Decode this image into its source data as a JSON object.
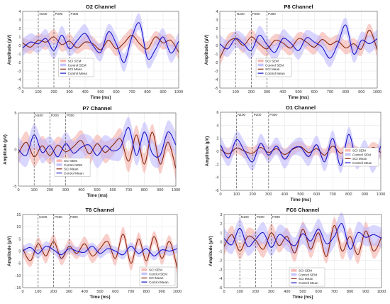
{
  "figure": {
    "colors": {
      "sci_sem_fill": "#f4a7a0",
      "control_sem_fill": "#b9b4ff",
      "sci_mean_line": "#8b2a12",
      "control_mean_line": "#1a14c8",
      "marker_line": "#555555",
      "grid_line": "#e3e3e3"
    },
    "components": [
      "N100",
      "P200",
      "P300"
    ],
    "component_times": [
      100,
      200,
      300
    ]
  },
  "chart_data": [
    {
      "type": "line",
      "title": "O2 Channel",
      "xlabel": "Time (ms)",
      "ylabel": "Amplitude (µV)",
      "xlim": [
        0,
        1000
      ],
      "ylim": [
        -5,
        4
      ],
      "xticks": [
        0,
        100,
        200,
        300,
        400,
        500,
        600,
        700,
        800,
        900,
        1000
      ],
      "yticks": [
        -5,
        -4,
        -3,
        -2,
        -1,
        0,
        1,
        2,
        3,
        4
      ],
      "grid": true,
      "legend": "center-left",
      "x": [
        0,
        50,
        100,
        150,
        200,
        250,
        300,
        350,
        400,
        450,
        500,
        550,
        600,
        650,
        700,
        750,
        800,
        850,
        900,
        950,
        1000
      ],
      "series": [
        {
          "name": "SCI Mean",
          "values": [
            0.3,
            -0.2,
            0.6,
            0.4,
            1.0,
            0.1,
            0.5,
            -0.3,
            0.4,
            0.2,
            -0.5,
            0.6,
            -0.4,
            0.3,
            1.2,
            0.2,
            -0.4,
            1.0,
            0.3,
            0.6,
            -0.8
          ],
          "sem": 0.9
        },
        {
          "name": "Control Mean",
          "values": [
            -0.3,
            0.4,
            0.2,
            0.8,
            -0.6,
            1.2,
            -0.4,
            0.6,
            1.4,
            0.0,
            -0.8,
            1.6,
            0.2,
            -2.0,
            1.0,
            2.6,
            -1.5,
            -0.5,
            1.0,
            -0.9,
            0.5
          ],
          "sem": 1.1
        }
      ],
      "legend_entries": [
        "SCI SEM",
        "Control SEM",
        "SCI Mean",
        "Control Mean"
      ]
    },
    {
      "type": "line",
      "title": "P8 Channel",
      "xlabel": "Time (ms)",
      "ylabel": "Amplitude (µV)",
      "xlim": [
        0,
        1000
      ],
      "ylim": [
        -5,
        4
      ],
      "xticks": [
        0,
        100,
        200,
        300,
        400,
        500,
        600,
        700,
        800,
        900,
        1000
      ],
      "yticks": [
        -5,
        -4,
        -3,
        -2,
        -1,
        0,
        1,
        2,
        3,
        4
      ],
      "grid": true,
      "legend": "center-left",
      "x": [
        0,
        50,
        100,
        150,
        200,
        250,
        300,
        350,
        400,
        450,
        500,
        550,
        600,
        650,
        700,
        750,
        800,
        850,
        900,
        950,
        1000
      ],
      "series": [
        {
          "name": "SCI Mean",
          "values": [
            -1.5,
            0.3,
            0.8,
            0.0,
            1.0,
            0.2,
            -0.4,
            0.6,
            0.3,
            -0.3,
            0.8,
            0.4,
            -0.2,
            0.7,
            0.1,
            0.5,
            -0.3,
            0.2,
            -0.4,
            1.8,
            -0.5
          ],
          "sem": 0.9
        },
        {
          "name": "Control Mean",
          "values": [
            0.2,
            -0.4,
            0.8,
            0.2,
            -0.6,
            1.2,
            0.1,
            -0.8,
            0.8,
            0.3,
            -0.6,
            0.9,
            0.4,
            -0.2,
            -1.5,
            0.2,
            2.4,
            -1.0,
            0.6,
            0.2,
            0.8
          ],
          "sem": 1.1
        }
      ],
      "legend_entries": [
        "SCI SEM",
        "Control SEM",
        "SCI Mean",
        "Control Mean"
      ]
    },
    {
      "type": "line",
      "title": "P7 Channel",
      "xlabel": "Time (ms)",
      "ylabel": "Amplitude (µV)",
      "xlim": [
        0,
        1000
      ],
      "ylim": [
        -5,
        5
      ],
      "xticks": [
        0,
        100,
        200,
        300,
        400,
        500,
        600,
        700,
        800,
        900,
        1000
      ],
      "yticks": [
        -5,
        0,
        5
      ],
      "grid": true,
      "legend": "center-left",
      "x": [
        0,
        50,
        100,
        150,
        200,
        250,
        300,
        350,
        400,
        450,
        500,
        550,
        600,
        650,
        700,
        750,
        800,
        850,
        900,
        950,
        1000
      ],
      "series": [
        {
          "name": "SCI Mean",
          "values": [
            -0.5,
            1.0,
            -1.0,
            0.5,
            -0.8,
            0.6,
            -0.3,
            0.4,
            1.2,
            -0.6,
            0.8,
            -0.4,
            0.6,
            1.4,
            -1.6,
            2.0,
            -2.0,
            2.4,
            -2.0,
            1.0,
            -2.6
          ],
          "sem": 1.5
        },
        {
          "name": "Control Mean",
          "values": [
            0.0,
            -0.8,
            2.0,
            -0.4,
            0.5,
            -1.0,
            0.8,
            -0.5,
            0.3,
            0.6,
            -0.8,
            0.5,
            -0.2,
            0.4,
            3.0,
            -0.8,
            2.4,
            -0.5,
            -0.8,
            2.4,
            0.6
          ],
          "sem": 1.8
        }
      ],
      "legend_entries": [
        "SCI SEM",
        "Control SEM",
        "SCI Mean",
        "Control Mean"
      ]
    },
    {
      "type": "line",
      "title": "O1 Channel",
      "xlabel": "Time (ms)",
      "ylabel": "Amplitude (µV)",
      "xlim": [
        0,
        1000
      ],
      "ylim": [
        -6,
        6
      ],
      "xticks": [
        0,
        100,
        200,
        300,
        400,
        500,
        600,
        700,
        800,
        900,
        1000
      ],
      "yticks": [
        -6,
        -4,
        -2,
        0,
        2,
        4,
        6
      ],
      "grid": true,
      "legend": "center-right",
      "x": [
        0,
        50,
        100,
        150,
        200,
        250,
        300,
        350,
        400,
        450,
        500,
        550,
        600,
        650,
        700,
        750,
        800,
        850,
        900,
        950,
        1000
      ],
      "series": [
        {
          "name": "SCI Mean",
          "values": [
            0.3,
            -0.4,
            0.5,
            0.0,
            -0.3,
            0.6,
            -0.2,
            0.4,
            -0.5,
            0.3,
            0.7,
            -0.2,
            0.4,
            -0.6,
            0.8,
            -0.3,
            0.5,
            0.0,
            -0.8,
            0.6,
            -0.2
          ],
          "sem": 1.0
        },
        {
          "name": "Control Mean",
          "values": [
            1.0,
            -1.0,
            1.8,
            0.0,
            -1.6,
            1.2,
            -0.6,
            0.8,
            -1.2,
            0.4,
            0.6,
            -0.8,
            1.0,
            -1.6,
            2.0,
            -2.2,
            2.6,
            -1.4,
            0.4,
            -1.8,
            0.8
          ],
          "sem": 1.5
        }
      ],
      "legend_entries": [
        "SCI SEM",
        "Control SEM",
        "SCI Mean",
        "Control Mean"
      ]
    },
    {
      "type": "line",
      "title": "T8 Channel",
      "xlabel": "Time (ms)",
      "ylabel": "Amplitude (µV)",
      "xlim": [
        0,
        1000
      ],
      "ylim": [
        -15,
        15
      ],
      "xticks": [
        0,
        100,
        200,
        300,
        400,
        500,
        600,
        700,
        800,
        900,
        1000
      ],
      "yticks": [
        -15,
        -10,
        -5,
        0,
        5,
        10,
        15
      ],
      "grid": true,
      "legend": "bottom-right",
      "x": [
        0,
        50,
        100,
        150,
        200,
        250,
        300,
        350,
        400,
        450,
        500,
        550,
        600,
        650,
        700,
        750,
        800,
        850,
        900,
        950,
        1000
      ],
      "series": [
        {
          "name": "SCI Mean",
          "values": [
            1.0,
            -4.0,
            3.0,
            -2.0,
            4.0,
            -3.0,
            2.0,
            -1.0,
            3.0,
            -2.0,
            1.0,
            4.0,
            -3.0,
            7.0,
            -5.0,
            5.0,
            -4.0,
            6.0,
            -3.0,
            4.0,
            -7.0
          ],
          "sem": 3.0
        },
        {
          "name": "Control Mean",
          "values": [
            0.0,
            1.5,
            -1.0,
            2.0,
            0.5,
            -1.5,
            1.0,
            0.0,
            -0.5,
            2.0,
            -1.0,
            1.0,
            0.0,
            -1.5,
            2.0,
            -1.0,
            1.0,
            -2.0,
            0.5,
            0.0,
            1.0
          ],
          "sem": 2.0
        }
      ],
      "legend_entries": [
        "SCI SEM",
        "Control SEM",
        "SCI Mean",
        "Control Mean"
      ]
    },
    {
      "type": "line",
      "title": "FC6 Channel",
      "xlabel": "Time (ms)",
      "ylabel": "Amplitude (µV)",
      "xlim": [
        0,
        1000
      ],
      "ylim": [
        -5,
        3
      ],
      "xticks": [
        0,
        100,
        200,
        300,
        400,
        500,
        600,
        700,
        800,
        900,
        1000
      ],
      "yticks": [
        -5,
        -4,
        -3,
        -2,
        -1,
        0,
        1,
        2,
        3
      ],
      "grid": true,
      "legend": "bottom-center",
      "x": [
        0,
        50,
        100,
        150,
        200,
        250,
        300,
        350,
        400,
        450,
        500,
        550,
        600,
        650,
        700,
        750,
        800,
        850,
        900,
        950,
        1000
      ],
      "series": [
        {
          "name": "SCI Mean",
          "values": [
            -0.5,
            0.8,
            -1.0,
            0.6,
            0.2,
            -0.8,
            1.0,
            -0.4,
            0.6,
            -1.2,
            1.4,
            -0.8,
            1.0,
            -1.6,
            1.8,
            -1.0,
            0.6,
            -1.4,
            1.2,
            -1.0,
            0.5
          ],
          "sem": 1.0
        },
        {
          "name": "Control Mean",
          "values": [
            0.4,
            -0.3,
            1.5,
            -0.5,
            0.3,
            1.0,
            -0.6,
            0.8,
            0.2,
            -0.4,
            0.9,
            0.1,
            1.4,
            -0.2,
            0.6,
            2.0,
            -0.8,
            1.0,
            0.5,
            0.8,
            0.4
          ],
          "sem": 1.2
        }
      ],
      "legend_entries": [
        "SCI SEM",
        "Control SEM",
        "SCI Mean",
        "Control Mean"
      ]
    }
  ]
}
